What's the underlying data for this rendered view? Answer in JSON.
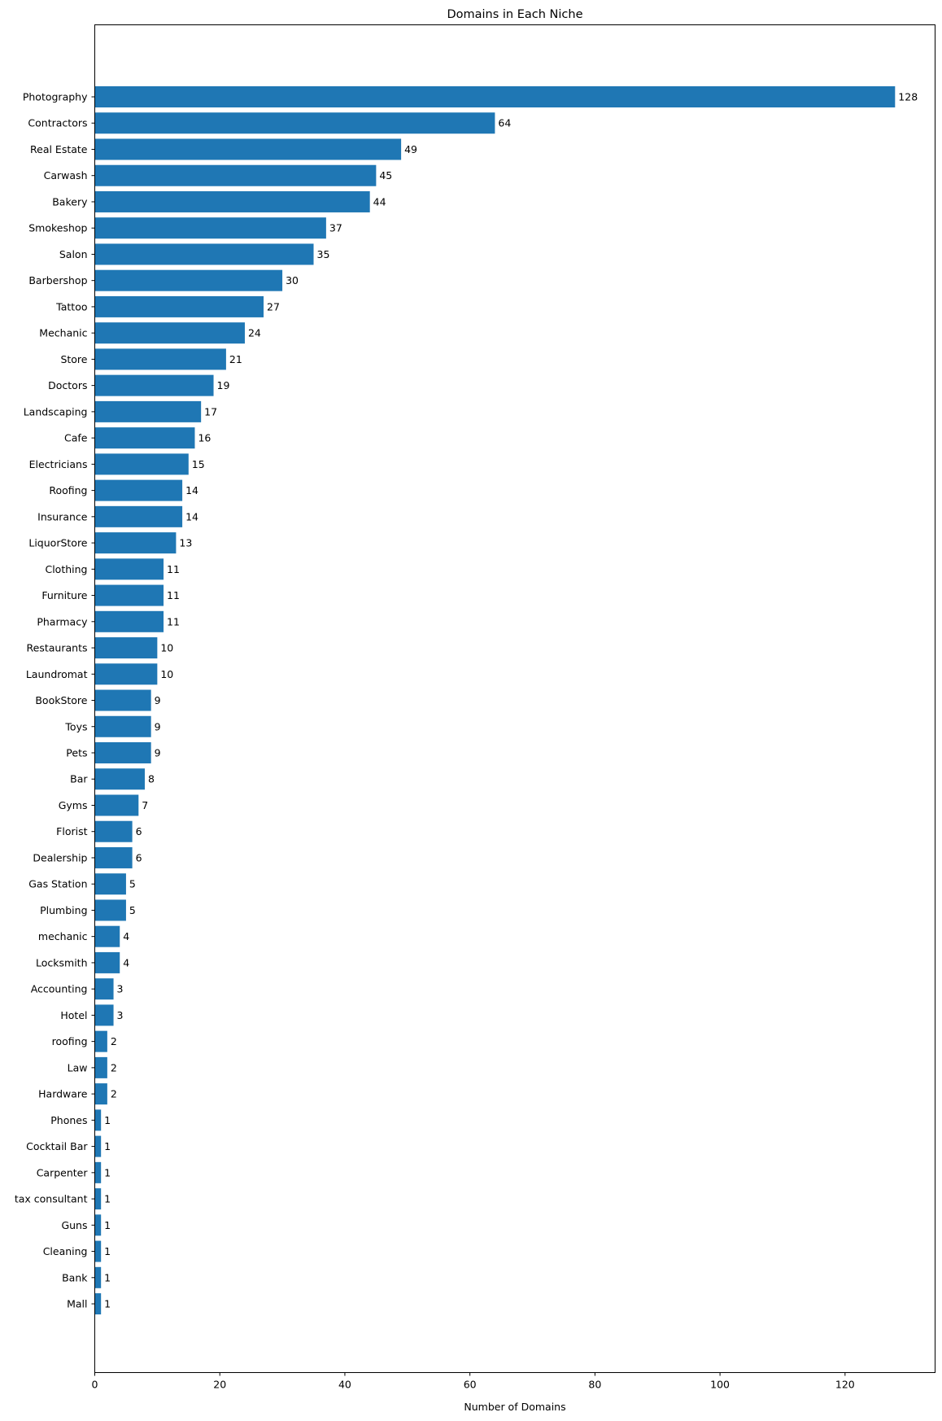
{
  "chart_data": {
    "type": "bar",
    "orientation": "horizontal",
    "title": "Domains in Each Niche",
    "xlabel": "Number of Domains",
    "ylabel": "",
    "xlim": [
      0,
      134.4
    ],
    "xticks": [
      0,
      20,
      40,
      60,
      80,
      100,
      120
    ],
    "grid": false,
    "bar_color": "#1f77b4",
    "categories": [
      "Photography",
      "Contractors",
      "Real Estate",
      "Carwash",
      "Bakery",
      "Smokeshop",
      "Salon",
      "Barbershop",
      "Tattoo",
      "Mechanic",
      "Store",
      "Doctors",
      "Landscaping",
      "Cafe",
      "Electricians",
      "Roofing",
      "Insurance",
      "LiquorStore",
      "Clothing",
      "Furniture",
      "Pharmacy",
      "Restaurants",
      "Laundromat",
      "BookStore",
      "Toys",
      "Pets",
      "Bar",
      "Gyms",
      "Florist",
      "Dealership",
      "Gas Station",
      "Plumbing",
      "mechanic",
      "Locksmith",
      "Accounting",
      "Hotel",
      "roofing",
      "Law",
      "Hardware",
      "Phones",
      "Cocktail Bar",
      "Carpenter",
      "tax consultant",
      "Guns",
      "Cleaning",
      "Bank",
      "Mall"
    ],
    "values": [
      128,
      64,
      49,
      45,
      44,
      37,
      35,
      30,
      27,
      24,
      21,
      19,
      17,
      16,
      15,
      14,
      14,
      13,
      11,
      11,
      11,
      10,
      10,
      9,
      9,
      9,
      8,
      7,
      6,
      6,
      5,
      5,
      4,
      4,
      3,
      3,
      2,
      2,
      2,
      1,
      1,
      1,
      1,
      1,
      1,
      1,
      1
    ]
  }
}
